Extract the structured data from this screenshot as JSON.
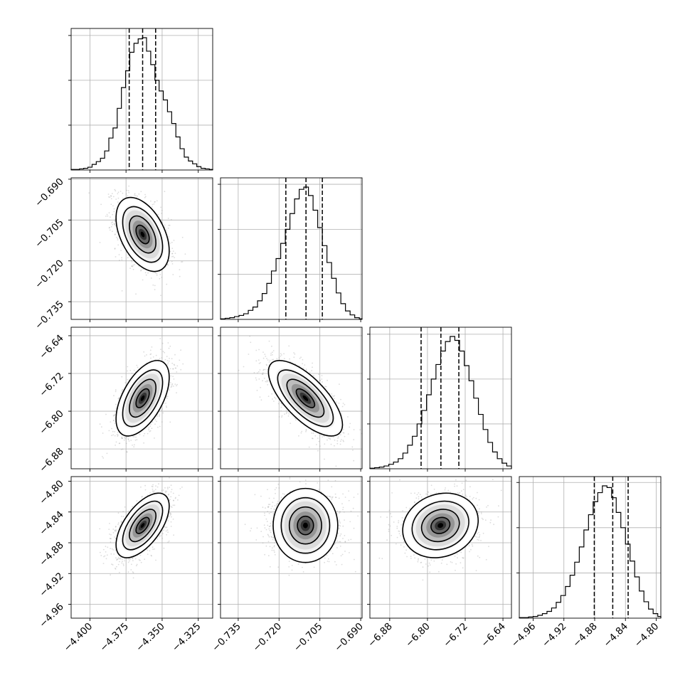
{
  "chart_data": {
    "type": "corner",
    "grid": true,
    "parameters": [
      {
        "index": 0,
        "range": [
          -4.413,
          -4.315
        ],
        "ticks": [
          -4.4,
          -4.375,
          -4.35,
          -4.325
        ],
        "tick_labels": [
          "−4.400",
          "−4.375",
          "−4.350",
          "−4.325"
        ],
        "quantiles": [
          -4.3728,
          -4.3635,
          -4.3545
        ],
        "mean": -4.3635,
        "sigma": 0.0092
      },
      {
        "index": 1,
        "range": [
          -0.7415,
          -0.6895
        ],
        "ticks": [
          -0.735,
          -0.72,
          -0.705,
          -0.69
        ],
        "tick_labels": [
          "−0.735",
          "−0.720",
          "−0.705",
          "−0.690"
        ],
        "quantiles": [
          -0.7175,
          -0.7101,
          -0.7041
        ],
        "mean": -0.7103,
        "sigma": 0.0068
      },
      {
        "index": 2,
        "range": [
          -6.922,
          -6.622
        ],
        "ticks": [
          -6.88,
          -6.8,
          -6.72,
          -6.64
        ],
        "tick_labels": [
          "−6.88",
          "−6.80",
          "−6.72",
          "−6.64"
        ],
        "quantiles": [
          -6.8135,
          -6.7715,
          -6.7335
        ],
        "mean": -6.7725,
        "sigma": 0.04
      },
      {
        "index": 3,
        "range": [
          -4.978,
          -4.794
        ],
        "ticks": [
          -4.96,
          -4.92,
          -4.88,
          -4.84,
          -4.8
        ],
        "tick_labels": [
          "−4.96",
          "−4.92",
          "−4.88",
          "−4.84",
          "−4.80"
        ],
        "quantiles": [
          -4.8805,
          -4.8565,
          -4.8365
        ],
        "mean": -4.8575,
        "sigma": 0.021
      }
    ],
    "histogram_y_ticks": [
      {
        "param": 0,
        "counts": [
          0,
          40,
          80,
          120,
          160,
          200,
          240,
          280,
          320,
          360,
          400
        ]
      },
      {
        "param": 1,
        "counts": [
          0,
          40,
          80,
          120,
          160,
          200,
          240,
          280,
          320,
          360,
          400
        ]
      },
      {
        "param": 2,
        "counts": [
          0,
          40,
          80,
          120,
          160,
          200,
          240,
          280,
          320,
          360,
          400
        ]
      },
      {
        "param": 3,
        "counts": [
          0,
          40,
          80,
          120,
          160,
          200,
          240,
          280,
          320,
          360,
          400
        ]
      }
    ],
    "histograms": [
      {
        "param": 0,
        "bins": [
          -4.413,
          -4.4101,
          -4.4072,
          -4.4043,
          -4.4014,
          -4.3985,
          -4.3956,
          -4.3927,
          -4.3898,
          -4.3869,
          -4.384,
          -4.3811,
          -4.3782,
          -4.3753,
          -4.3724,
          -4.3695,
          -4.3666,
          -4.3637,
          -4.3608,
          -4.3579,
          -4.355,
          -4.3521,
          -4.3492,
          -4.3463,
          -4.3434,
          -4.3405,
          -4.3376,
          -4.3347,
          -4.3318,
          -4.3289,
          -4.326,
          -4.3231,
          -4.3202,
          -4.3173,
          -4.315
        ],
        "counts": [
          1,
          1,
          2,
          3,
          5,
          10,
          15,
          21,
          34,
          57,
          75,
          110,
          147,
          177,
          210,
          226,
          234,
          236,
          212,
          188,
          160,
          141,
          125,
          104,
          83,
          59,
          38,
          23,
          16,
          11,
          6,
          3,
          2,
          1
        ]
      },
      {
        "param": 1,
        "bins": [
          -0.7415,
          -0.7398,
          -0.7381,
          -0.7364,
          -0.7347,
          -0.733,
          -0.7313,
          -0.7296,
          -0.7279,
          -0.7262,
          -0.7245,
          -0.7228,
          -0.7211,
          -0.7194,
          -0.7177,
          -0.716,
          -0.7143,
          -0.7126,
          -0.7109,
          -0.7092,
          -0.7075,
          -0.7058,
          -0.7041,
          -0.7024,
          -0.7007,
          -0.699,
          -0.6973,
          -0.6956,
          -0.6939,
          -0.6922,
          -0.6905,
          -0.6895
        ],
        "counts": [
          1,
          2,
          3,
          5,
          7,
          10,
          16,
          22,
          33,
          46,
          64,
          86,
          108,
          135,
          160,
          188,
          214,
          231,
          235,
          220,
          194,
          163,
          131,
          101,
          73,
          47,
          28,
          15,
          8,
          3,
          1
        ]
      },
      {
        "param": 2,
        "bins": [
          -6.922,
          -6.912,
          -6.902,
          -6.892,
          -6.882,
          -6.872,
          -6.862,
          -6.852,
          -6.842,
          -6.832,
          -6.822,
          -6.812,
          -6.802,
          -6.792,
          -6.782,
          -6.772,
          -6.762,
          -6.752,
          -6.742,
          -6.732,
          -6.722,
          -6.712,
          -6.702,
          -6.692,
          -6.682,
          -6.672,
          -6.662,
          -6.652,
          -6.642,
          -6.632,
          -6.622
        ],
        "counts": [
          1,
          2,
          3,
          5,
          8,
          12,
          18,
          28,
          42,
          58,
          80,
          104,
          132,
          160,
          186,
          210,
          227,
          236,
          229,
          210,
          184,
          157,
          126,
          97,
          70,
          47,
          30,
          18,
          10,
          5
        ]
      },
      {
        "param": 3,
        "bins": [
          -4.978,
          -4.972,
          -4.966,
          -4.96,
          -4.954,
          -4.948,
          -4.942,
          -4.936,
          -4.93,
          -4.924,
          -4.918,
          -4.912,
          -4.906,
          -4.9,
          -4.894,
          -4.888,
          -4.882,
          -4.876,
          -4.87,
          -4.864,
          -4.858,
          -4.852,
          -4.846,
          -4.84,
          -4.834,
          -4.828,
          -4.822,
          -4.816,
          -4.81,
          -4.804,
          -4.798,
          -4.794
        ],
        "counts": [
          1,
          1,
          2,
          3,
          5,
          8,
          12,
          18,
          28,
          40,
          56,
          76,
          99,
          126,
          156,
          183,
          206,
          222,
          234,
          231,
          213,
          187,
          160,
          131,
          101,
          73,
          48,
          29,
          16,
          8,
          3
        ]
      }
    ],
    "pairs": [
      {
        "x_param": 0,
        "y_param": 1,
        "correlation": -0.45
      },
      {
        "x_param": 0,
        "y_param": 2,
        "correlation": 0.55
      },
      {
        "x_param": 1,
        "y_param": 2,
        "correlation": -0.7
      },
      {
        "x_param": 0,
        "y_param": 3,
        "correlation": 0.6
      },
      {
        "x_param": 1,
        "y_param": 3,
        "correlation": 0.0
      },
      {
        "x_param": 2,
        "y_param": 3,
        "correlation": 0.15
      }
    ],
    "contour_levels_sigma": [
      0.5,
      1.0,
      1.5,
      2.0
    ],
    "colors": {
      "points": "#9a9a9a",
      "density": "#000000",
      "lines": "#000000",
      "grid": "#b0b0b0"
    }
  }
}
